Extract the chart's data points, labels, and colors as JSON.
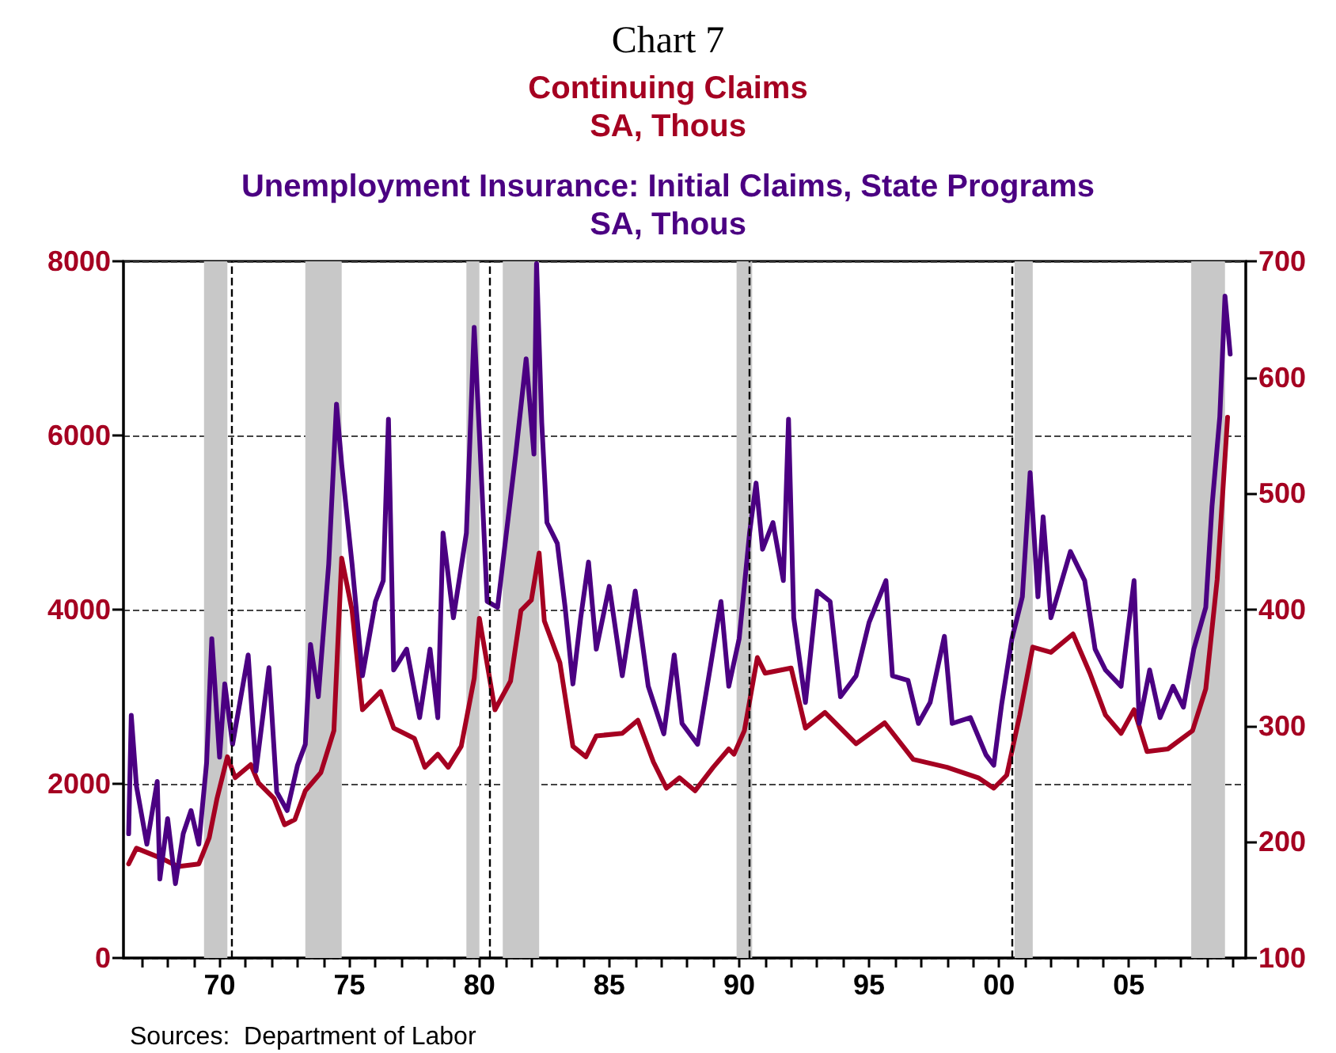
{
  "chart_data": {
    "type": "line",
    "title": "Chart 7",
    "annotations": [
      "Sources:  Department of Labor"
    ],
    "xlim": [
      1966.3,
      2009.5
    ],
    "xticks": [
      {
        "value": 1967,
        "label": null
      },
      {
        "value": 1968,
        "label": null
      },
      {
        "value": 1969,
        "label": null
      },
      {
        "value": 1970,
        "label": "70"
      },
      {
        "value": 1971,
        "label": null
      },
      {
        "value": 1972,
        "label": null
      },
      {
        "value": 1973,
        "label": null
      },
      {
        "value": 1974,
        "label": null
      },
      {
        "value": 1975,
        "label": "75"
      },
      {
        "value": 1976,
        "label": null
      },
      {
        "value": 1977,
        "label": null
      },
      {
        "value": 1978,
        "label": null
      },
      {
        "value": 1979,
        "label": null
      },
      {
        "value": 1980,
        "label": "80"
      },
      {
        "value": 1981,
        "label": null
      },
      {
        "value": 1982,
        "label": null
      },
      {
        "value": 1983,
        "label": null
      },
      {
        "value": 1984,
        "label": null
      },
      {
        "value": 1985,
        "label": "85"
      },
      {
        "value": 1986,
        "label": null
      },
      {
        "value": 1987,
        "label": null
      },
      {
        "value": 1988,
        "label": null
      },
      {
        "value": 1989,
        "label": null
      },
      {
        "value": 1990,
        "label": "90"
      },
      {
        "value": 1991,
        "label": null
      },
      {
        "value": 1992,
        "label": null
      },
      {
        "value": 1993,
        "label": null
      },
      {
        "value": 1994,
        "label": null
      },
      {
        "value": 1995,
        "label": "95"
      },
      {
        "value": 1996,
        "label": null
      },
      {
        "value": 1997,
        "label": null
      },
      {
        "value": 1998,
        "label": null
      },
      {
        "value": 1999,
        "label": null
      },
      {
        "value": 2000,
        "label": "00"
      },
      {
        "value": 2001,
        "label": null
      },
      {
        "value": 2002,
        "label": null
      },
      {
        "value": 2003,
        "label": null
      },
      {
        "value": 2004,
        "label": null
      },
      {
        "value": 2005,
        "label": "05"
      },
      {
        "value": 2006,
        "label": null
      },
      {
        "value": 2007,
        "label": null
      },
      {
        "value": 2008,
        "label": null
      },
      {
        "value": 2009,
        "label": null
      }
    ],
    "ylim": [
      0,
      8000
    ],
    "yticks": [
      0,
      2000,
      4000,
      6000,
      8000
    ],
    "y2lim": [
      100,
      700
    ],
    "y2ticks": [
      100,
      200,
      300,
      400,
      500,
      600,
      700
    ],
    "grid": "y",
    "legend": false,
    "marker": "none",
    "line_style": "solid",
    "series": [
      {
        "name": "Continuing Claims\nSA, Thous",
        "color": "#a50021",
        "x": [
          1966.5,
          1966.8,
          1967.8,
          1968.4,
          1969.2,
          1969.6,
          1969.9,
          1970.3,
          1970.6,
          1971.2,
          1971.5,
          1972.1,
          1972.5,
          1972.9,
          1973.3,
          1973.9,
          1974.4,
          1974.7,
          1975.1,
          1975.5,
          1976.2,
          1976.7,
          1977.5,
          1977.9,
          1978.4,
          1978.8,
          1979.3,
          1979.8,
          1980.0,
          1980.6,
          1981.2,
          1981.6,
          1982.0,
          1982.3,
          1982.5,
          1983.1,
          1983.6,
          1984.1,
          1984.5,
          1985.5,
          1986.1,
          1986.7,
          1987.2,
          1987.7,
          1988.3,
          1989.0,
          1989.6,
          1989.8,
          1990.2,
          1990.7,
          1991.0,
          1992.0,
          1992.55,
          1993.3,
          1994.5,
          1995.6,
          1996.7,
          1998.0,
          1999.2,
          1999.8,
          2000.3,
          2000.8,
          2001.3,
          2002.0,
          2002.85,
          2003.5,
          2004.1,
          2004.7,
          2005.2,
          2005.7,
          2006.5,
          2007.45,
          2007.96,
          2008.4,
          2008.8
        ],
        "values": [
          1080,
          1260,
          1140,
          1050,
          1080,
          1380,
          1830,
          2310,
          2070,
          2220,
          2010,
          1830,
          1530,
          1590,
          1920,
          2130,
          2610,
          4590,
          3990,
          2850,
          3060,
          2640,
          2520,
          2190,
          2340,
          2190,
          2430,
          3210,
          3900,
          2850,
          3180,
          3990,
          4110,
          4650,
          3870,
          3390,
          2430,
          2310,
          2550,
          2580,
          2730,
          2250,
          1950,
          2070,
          1920,
          2190,
          2400,
          2340,
          2610,
          3450,
          3270,
          3330,
          2640,
          2820,
          2460,
          2700,
          2280,
          2190,
          2070,
          1950,
          2100,
          2790,
          3570,
          3510,
          3720,
          3270,
          2790,
          2580,
          2850,
          2370,
          2400,
          2610,
          3090,
          4350,
          6210
        ]
      },
      {
        "name": "Unemployment Insurance: Initial Claims, State Programs\nSA, Thous",
        "color": "#4b0082",
        "axis": "y2",
        "x": [
          1966.5,
          1966.6,
          1966.8,
          1967.2,
          1967.6,
          1967.7,
          1968.0,
          1968.3,
          1968.6,
          1968.9,
          1969.2,
          1969.5,
          1969.7,
          1970.0,
          1970.2,
          1970.5,
          1971.1,
          1971.4,
          1971.9,
          1972.2,
          1972.6,
          1973.0,
          1973.3,
          1973.5,
          1973.8,
          1974.2,
          1974.5,
          1974.7,
          1975.1,
          1975.5,
          1976.0,
          1976.3,
          1976.5,
          1976.7,
          1977.2,
          1977.7,
          1978.1,
          1978.4,
          1978.6,
          1979.0,
          1979.5,
          1979.8,
          1980.0,
          1980.3,
          1980.7,
          1981.4,
          1981.8,
          1982.1,
          1982.2,
          1982.4,
          1982.6,
          1983.0,
          1983.3,
          1983.6,
          1983.9,
          1984.2,
          1984.5,
          1985.0,
          1985.5,
          1986.0,
          1986.5,
          1987.1,
          1987.5,
          1987.8,
          1988.4,
          1988.9,
          1989.3,
          1989.6,
          1990.0,
          1990.4,
          1990.65,
          1990.9,
          1991.3,
          1991.7,
          1991.9,
          1992.1,
          1992.55,
          1993.0,
          1993.5,
          1993.9,
          1994.5,
          1995.0,
          1995.65,
          1995.9,
          1996.5,
          1996.9,
          1997.35,
          1997.9,
          1998.2,
          1998.9,
          1999.5,
          1999.8,
          2000.1,
          2000.5,
          2000.9,
          2001.2,
          2001.5,
          2001.7,
          2002.0,
          2002.75,
          2003.3,
          2003.7,
          2004.1,
          2004.7,
          2005.2,
          2005.4,
          2005.8,
          2006.2,
          2006.7,
          2007.1,
          2007.5,
          2007.96,
          2008.2,
          2008.5,
          2008.7,
          2008.9
        ],
        "values": [
          207,
          309,
          248,
          198,
          252,
          168,
          220,
          164,
          207,
          227,
          198,
          268,
          375,
          273,
          336,
          284,
          361,
          261,
          350,
          243,
          227,
          266,
          284,
          370,
          325,
          439,
          577,
          525,
          439,
          343,
          407,
          425,
          564,
          348,
          366,
          307,
          366,
          307,
          466,
          393,
          466,
          643,
          552,
          407,
          402,
          534,
          616,
          534,
          698,
          561,
          475,
          457,
          402,
          336,
          393,
          441,
          366,
          420,
          343,
          416,
          334,
          293,
          361,
          302,
          284,
          352,
          407,
          334,
          375,
          466,
          509,
          452,
          475,
          425,
          564,
          393,
          320,
          416,
          407,
          325,
          343,
          389,
          425,
          343,
          339,
          302,
          320,
          377,
          302,
          307,
          275,
          266,
          318,
          375,
          411,
          518,
          411,
          480,
          393,
          450,
          425,
          366,
          348,
          334,
          425,
          302,
          348,
          307,
          334,
          316,
          366,
          402,
          489,
          566,
          670,
          620
        ]
      }
    ],
    "ref_lines": [
      {
        "axis": "x",
        "value": 1970.45,
        "color": "#000000",
        "line_style": "dashed"
      },
      {
        "axis": "x",
        "value": 1980.4,
        "color": "#000000",
        "line_style": "dashed"
      },
      {
        "axis": "x",
        "value": 1990.4,
        "color": "#000000",
        "line_style": "dashed"
      },
      {
        "axis": "x",
        "value": 2000.5,
        "color": "#000000",
        "line_style": "dashed"
      }
    ],
    "bands": [
      {
        "axis": "x",
        "from": 1969.4,
        "to": 1970.3,
        "color": "#c8c8c8"
      },
      {
        "axis": "x",
        "from": 1973.3,
        "to": 1974.7,
        "color": "#c8c8c8"
      },
      {
        "axis": "x",
        "from": 1979.5,
        "to": 1980.0,
        "color": "#c8c8c8"
      },
      {
        "axis": "x",
        "from": 1980.9,
        "to": 1982.3,
        "color": "#c8c8c8"
      },
      {
        "axis": "x",
        "from": 1989.9,
        "to": 1990.5,
        "color": "#c8c8c8"
      },
      {
        "axis": "x",
        "from": 2000.6,
        "to": 2001.3,
        "color": "#c8c8c8"
      },
      {
        "axis": "x",
        "from": 2007.4,
        "to": 2008.7,
        "color": "#c8c8c8"
      }
    ]
  }
}
